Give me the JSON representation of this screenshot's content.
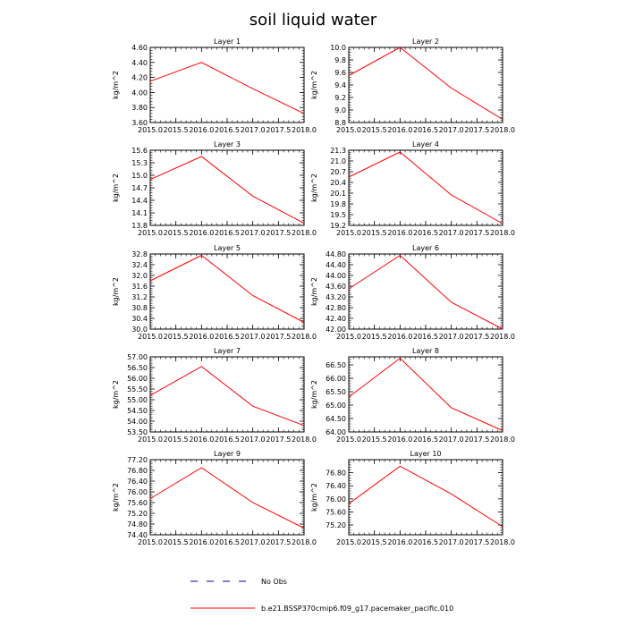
{
  "title": "soil liquid water",
  "colors": {
    "model_line": "#ff0000",
    "obs_line": "#0000aa",
    "axis": "#000000"
  },
  "legend": {
    "obs_label": "No Obs",
    "model_label": "b.e21.BSSP370cmip6.f09_g17.pacemaker_pacific.010"
  },
  "chart_data": [
    {
      "type": "line",
      "title": "Layer 1",
      "ylabel": "kg/m^2",
      "xlabel": "",
      "x": [
        2015.0,
        2016.0,
        2017.0,
        2018.0
      ],
      "series": [
        {
          "name": "b.e21.BSSP370cmip6.f09_g17.pacemaker_pacific.010",
          "values": [
            4.15,
            4.4,
            4.05,
            3.72
          ]
        }
      ],
      "xlim": [
        2015.0,
        2018.0
      ],
      "ylim": [
        3.6,
        4.6
      ],
      "xticks": [
        "2015.0",
        "2015.5",
        "2016.0",
        "2016.5",
        "2017.0",
        "2017.5",
        "2018.0"
      ],
      "yticks": [
        "3.60",
        "3.80",
        "4.00",
        "4.20",
        "4.40",
        "4.60"
      ]
    },
    {
      "type": "line",
      "title": "Layer 2",
      "ylabel": "kg/m^2",
      "xlabel": "",
      "x": [
        2015.0,
        2016.0,
        2017.0,
        2018.0
      ],
      "series": [
        {
          "name": "b.e21.BSSP370cmip6.f09_g17.pacemaker_pacific.010",
          "values": [
            9.55,
            10.0,
            9.35,
            8.85
          ]
        }
      ],
      "xlim": [
        2015.0,
        2018.0
      ],
      "ylim": [
        8.8,
        10.0
      ],
      "xticks": [
        "2015.0",
        "2015.5",
        "2016.0",
        "2016.5",
        "2017.0",
        "2017.5",
        "2018.0"
      ],
      "yticks": [
        "8.8",
        "9.0",
        "9.2",
        "9.4",
        "9.6",
        "9.8",
        "10.0"
      ]
    },
    {
      "type": "line",
      "title": "Layer 3",
      "ylabel": "kg/m^2",
      "xlabel": "",
      "x": [
        2015.0,
        2016.0,
        2017.0,
        2018.0
      ],
      "series": [
        {
          "name": "b.e21.BSSP370cmip6.f09_g17.pacemaker_pacific.010",
          "values": [
            14.9,
            15.45,
            14.5,
            13.85
          ]
        }
      ],
      "xlim": [
        2015.0,
        2018.0
      ],
      "ylim": [
        13.8,
        15.6
      ],
      "xticks": [
        "2015.0",
        "2015.5",
        "2016.0",
        "2016.5",
        "2017.0",
        "2017.5",
        "2018.0"
      ],
      "yticks": [
        "13.8",
        "14.1",
        "14.4",
        "14.7",
        "15.0",
        "15.3",
        "15.6"
      ]
    },
    {
      "type": "line",
      "title": "Layer 4",
      "ylabel": "kg/m^2",
      "xlabel": "",
      "x": [
        2015.0,
        2016.0,
        2017.0,
        2018.0
      ],
      "series": [
        {
          "name": "b.e21.BSSP370cmip6.f09_g17.pacemaker_pacific.010",
          "values": [
            20.55,
            21.25,
            20.05,
            19.25
          ]
        }
      ],
      "xlim": [
        2015.0,
        2018.0
      ],
      "ylim": [
        19.2,
        21.3
      ],
      "xticks": [
        "2015.0",
        "2015.5",
        "2016.0",
        "2016.5",
        "2017.0",
        "2017.5",
        "2018.0"
      ],
      "yticks": [
        "19.2",
        "19.5",
        "19.8",
        "20.1",
        "20.4",
        "20.7",
        "21.0",
        "21.3"
      ]
    },
    {
      "type": "line",
      "title": "Layer 5",
      "ylabel": "kg/m^2",
      "xlabel": "",
      "x": [
        2015.0,
        2016.0,
        2017.0,
        2018.0
      ],
      "series": [
        {
          "name": "b.e21.BSSP370cmip6.f09_g17.pacemaker_pacific.010",
          "values": [
            31.8,
            32.75,
            31.25,
            30.25
          ]
        }
      ],
      "xlim": [
        2015.0,
        2018.0
      ],
      "ylim": [
        30.0,
        32.8
      ],
      "xticks": [
        "2015.0",
        "2015.5",
        "2016.0",
        "2016.5",
        "2017.0",
        "2017.5",
        "2018.0"
      ],
      "yticks": [
        "30.0",
        "30.4",
        "30.8",
        "31.2",
        "31.6",
        "32.0",
        "32.4",
        "32.8"
      ]
    },
    {
      "type": "line",
      "title": "Layer 6",
      "ylabel": "kg/m^2",
      "xlabel": "",
      "x": [
        2015.0,
        2016.0,
        2017.0,
        2018.0
      ],
      "series": [
        {
          "name": "b.e21.BSSP370cmip6.f09_g17.pacemaker_pacific.010",
          "values": [
            43.5,
            44.75,
            43.0,
            42.0
          ]
        }
      ],
      "xlim": [
        2015.0,
        2018.0
      ],
      "ylim": [
        42.0,
        44.8
      ],
      "xticks": [
        "2015.0",
        "2015.5",
        "2016.0",
        "2016.5",
        "2017.0",
        "2017.5",
        "2018.0"
      ],
      "yticks": [
        "42.00",
        "42.40",
        "42.80",
        "43.20",
        "43.60",
        "44.00",
        "44.40",
        "44.80"
      ]
    },
    {
      "type": "line",
      "title": "Layer 7",
      "ylabel": "kg/m^2",
      "xlabel": "",
      "x": [
        2015.0,
        2016.0,
        2017.0,
        2018.0
      ],
      "series": [
        {
          "name": "b.e21.BSSP370cmip6.f09_g17.pacemaker_pacific.010",
          "values": [
            55.2,
            56.55,
            54.7,
            53.8
          ]
        }
      ],
      "xlim": [
        2015.0,
        2018.0
      ],
      "ylim": [
        53.5,
        57.0
      ],
      "xticks": [
        "2015.0",
        "2015.5",
        "2016.0",
        "2016.5",
        "2017.0",
        "2017.5",
        "2018.0"
      ],
      "yticks": [
        "53.50",
        "54.00",
        "54.50",
        "55.00",
        "55.50",
        "56.00",
        "56.50",
        "57.00"
      ]
    },
    {
      "type": "line",
      "title": "Layer 8",
      "ylabel": "kg/m^2",
      "xlabel": "",
      "x": [
        2015.0,
        2016.0,
        2017.0,
        2018.0
      ],
      "series": [
        {
          "name": "b.e21.BSSP370cmip6.f09_g17.pacemaker_pacific.010",
          "values": [
            65.3,
            66.75,
            64.9,
            64.05
          ]
        }
      ],
      "xlim": [
        2015.0,
        2018.0
      ],
      "ylim": [
        64.0,
        66.8
      ],
      "xticks": [
        "2015.0",
        "2015.5",
        "2016.0",
        "2016.5",
        "2017.0",
        "2017.5",
        "2018.0"
      ],
      "yticks": [
        "64.00",
        "64.50",
        "65.00",
        "65.50",
        "66.00",
        "66.50"
      ]
    },
    {
      "type": "line",
      "title": "Layer 9",
      "ylabel": "kg/m^2",
      "xlabel": "",
      "x": [
        2015.0,
        2016.0,
        2017.0,
        2018.0
      ],
      "series": [
        {
          "name": "b.e21.BSSP370cmip6.f09_g17.pacemaker_pacific.010",
          "values": [
            75.75,
            76.9,
            75.6,
            74.65
          ]
        }
      ],
      "xlim": [
        2015.0,
        2018.0
      ],
      "ylim": [
        74.4,
        77.2
      ],
      "xticks": [
        "2015.0",
        "2015.5",
        "2016.0",
        "2016.5",
        "2017.0",
        "2017.5",
        "2018.0"
      ],
      "yticks": [
        "74.40",
        "74.80",
        "75.20",
        "75.60",
        "76.00",
        "76.40",
        "76.80",
        "77.20"
      ]
    },
    {
      "type": "line",
      "title": "Layer 10",
      "ylabel": "kg/m^2",
      "xlabel": "",
      "x": [
        2015.0,
        2016.0,
        2017.0,
        2018.0
      ],
      "series": [
        {
          "name": "b.e21.BSSP370cmip6.f09_g17.pacemaker_pacific.010",
          "values": [
            75.85,
            77.0,
            76.15,
            75.15
          ]
        }
      ],
      "xlim": [
        2015.0,
        2018.0
      ],
      "ylim": [
        74.9,
        77.2
      ],
      "xticks": [
        "2015.0",
        "2015.5",
        "2016.0",
        "2016.5",
        "2017.0",
        "2017.5",
        "2018.0"
      ],
      "yticks": [
        "75.20",
        "75.60",
        "76.00",
        "76.40",
        "76.80"
      ]
    }
  ]
}
